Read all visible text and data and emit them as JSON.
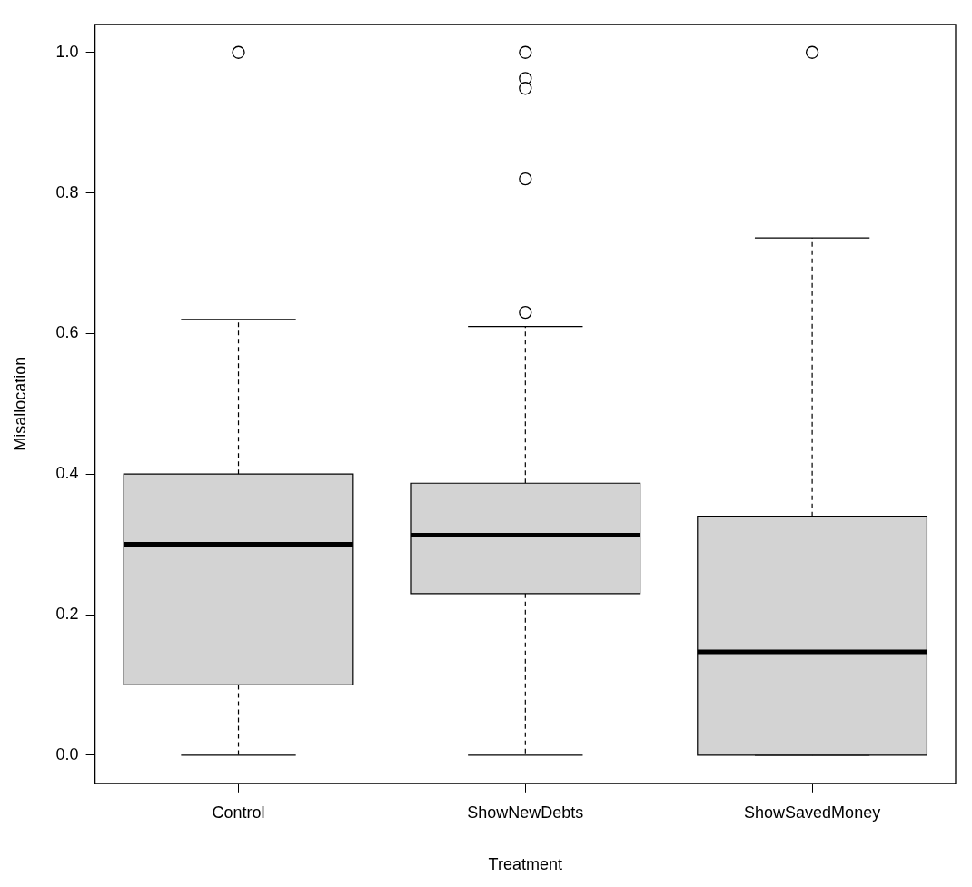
{
  "chart_data": {
    "type": "box",
    "categories": [
      "Control",
      "ShowNewDebts",
      "ShowSavedMoney"
    ],
    "boxes": [
      {
        "low": 0,
        "q1": 0.1,
        "median": 0.3,
        "q3": 0.4,
        "high": 0.62,
        "outliers": [
          1.0
        ]
      },
      {
        "low": 0,
        "q1": 0.23,
        "median": 0.313,
        "q3": 0.387,
        "high": 0.61,
        "outliers": [
          1.0,
          0.963,
          0.949,
          0.82,
          0.63
        ]
      },
      {
        "low": 0,
        "q1": 0,
        "median": 0.147,
        "q3": 0.34,
        "high": 0.736,
        "outliers": [
          1.0
        ]
      }
    ],
    "color": "#d3d3d3",
    "xlabel": "Treatment",
    "ylabel": "Misallocation",
    "ylim": [
      -0.04,
      1.04
    ],
    "yticks": [
      {
        "value": 0,
        "label": "0.0"
      },
      {
        "value": 0.2,
        "label": "0.2"
      },
      {
        "value": 0.4,
        "label": "0.4"
      },
      {
        "value": 0.6,
        "label": "0.6"
      },
      {
        "value": 0.8,
        "label": "0.8"
      },
      {
        "value": 1,
        "label": "1.0"
      }
    ],
    "grid": false
  }
}
